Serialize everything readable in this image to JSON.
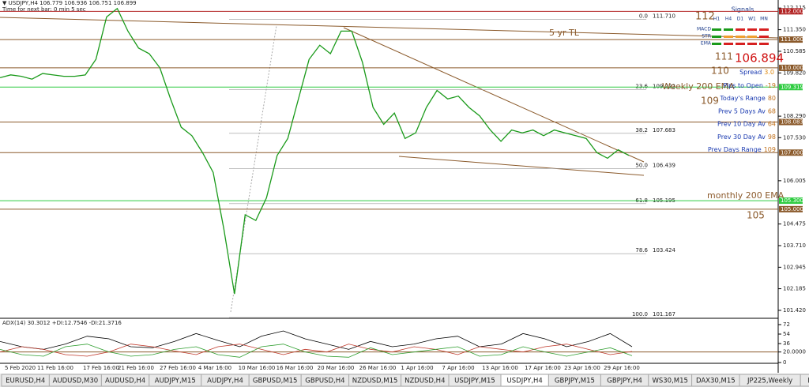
{
  "header": {
    "symbol_line": "▼ USDJPY,H4  106.779 106.936 106.751 106.899",
    "timer": "Time for next bar: 0 min 5 sec"
  },
  "price_axis": {
    "ylim": [
      101.167,
      112.4
    ],
    "ticks": [
      112.115,
      {
        "value": 111.35,
        "label": "111.350"
      },
      110.585,
      {
        "value": 109.82,
        "label": "109.820"
      },
      {
        "value": 108.29,
        "label": "108.290"
      },
      {
        "value": 107.53,
        "label": "107.530"
      },
      106.005,
      104.475,
      {
        "value": 103.71,
        "label": "103.710"
      },
      102.945,
      102.185,
      {
        "value": 101.42,
        "label": "101.420"
      }
    ]
  },
  "levels": [
    {
      "value": 112,
      "label": "112.000",
      "color": "#b22222"
    },
    {
      "value": 111,
      "label": "111.000",
      "color": "#8b5a2b"
    },
    {
      "value": 110,
      "label": "110.000",
      "color": "#8b5a2b"
    },
    {
      "value": 109.319,
      "label": "109.319",
      "color": "#2ecc40"
    },
    {
      "value": 108.083,
      "label": "108.083",
      "color": "#8b5a2b"
    },
    {
      "value": 107,
      "label": "107.000",
      "color": "#8b5a2b"
    },
    {
      "value": 105.3,
      "label": "105.300",
      "color": "#2ecc40"
    },
    {
      "value": 105,
      "label": "105.000",
      "color": "#8b5a2b"
    }
  ],
  "fib": [
    {
      "level": "0.0",
      "value": 111.71,
      "label": "111.710"
    },
    {
      "level": "23.6",
      "value": 109.222,
      "label": "109.222"
    },
    {
      "level": "38.2",
      "value": 107.683,
      "label": "107.683"
    },
    {
      "level": "50.0",
      "value": 106.439,
      "label": "106.439"
    },
    {
      "level": "61.8",
      "value": 105.195,
      "label": "105.195"
    },
    {
      "level": "78.6",
      "value": 103.424,
      "label": "103.424"
    },
    {
      "level": "100.0",
      "value": 101.167,
      "label": "101.167"
    }
  ],
  "annotations": [
    "112",
    "5 yr TL",
    "111",
    "110",
    "Weekly 200 EMA",
    "109",
    "monthly 200 EMA",
    "105"
  ],
  "current_price": 106.894,
  "spread": {
    "label": "Spread",
    "value": {
      "value": 3,
      "label": "3.0"
    }
  },
  "info_panel": [
    {
      "label": "Pips to Open",
      "value": -19
    },
    {
      "label": "Today's Range",
      "value": 80
    },
    {
      "label": "Prev 5 Days Av",
      "value": 68
    },
    {
      "label": "Prev 10 Day Av",
      "value": 64
    },
    {
      "label": "Prev 30 Day Av",
      "value": 98
    },
    {
      "label": "Prev Days Range",
      "value": 109
    }
  ],
  "signals": {
    "title": "Signals",
    "columns": [
      "H1",
      "H4",
      "D1",
      "W1",
      "MN"
    ],
    "rows": [
      {
        "name": "MACD",
        "colors": [
          "#1a9a1a",
          "#1a9a1a",
          "#d62020",
          "#d62020",
          "#d62020"
        ]
      },
      {
        "name": "STR",
        "colors": [
          "#1a9a1a",
          "#f0a030",
          "#f0a030",
          "#f0a030",
          "#d62020"
        ]
      },
      {
        "name": "EMA",
        "colors": [
          "#1a9a1a",
          "#d62020",
          "#d62020",
          "#d62020",
          "#d62020"
        ]
      }
    ]
  },
  "price_series": {
    "color": "#1a9a1a",
    "values": [
      109.65,
      109.75,
      109.7,
      109.6,
      109.8,
      109.75,
      109.7,
      109.7,
      109.75,
      110.3,
      111.8,
      112.1,
      111.3,
      110.7,
      110.5,
      110.0,
      108.9,
      107.9,
      107.6,
      107.0,
      106.3,
      104.3,
      102.0,
      104.8,
      104.6,
      105.4,
      106.9,
      107.5,
      108.9,
      110.3,
      110.8,
      110.5,
      111.3,
      111.3,
      110.2,
      108.6,
      108.0,
      108.4,
      107.5,
      107.7,
      108.6,
      109.2,
      108.9,
      109.0,
      108.6,
      108.3,
      107.8,
      107.4,
      107.8,
      107.7,
      107.8,
      107.6,
      107.8,
      107.7,
      107.6,
      107.5,
      107.0,
      106.8,
      107.1,
      106.9
    ]
  },
  "adx": {
    "label": "ADX(14) 30.3012 +DI:12.7546 -DI:21.3716",
    "ylim": [
      0,
      72
    ],
    "ticks": [
      72,
      54,
      36,
      {
        "value": 20,
        "label": "20.0000"
      },
      0
    ],
    "series": [
      {
        "color": "#000000",
        "values": [
          40,
          30,
          25,
          35,
          50,
          45,
          30,
          28,
          40,
          55,
          42,
          30,
          50,
          60,
          45,
          35,
          25,
          40,
          30,
          35,
          45,
          50,
          30,
          35,
          55,
          45,
          30,
          40,
          55,
          30
        ]
      },
      {
        "color": "#c0392b",
        "values": [
          20,
          30,
          25,
          15,
          12,
          20,
          35,
          30,
          22,
          15,
          30,
          35,
          25,
          15,
          25,
          20,
          35,
          25,
          20,
          30,
          25,
          15,
          30,
          25,
          20,
          30,
          35,
          25,
          15,
          21
        ]
      },
      {
        "color": "#2e9e2e",
        "values": [
          25,
          15,
          12,
          30,
          35,
          20,
          12,
          15,
          25,
          30,
          15,
          10,
          30,
          35,
          20,
          12,
          10,
          28,
          15,
          20,
          25,
          30,
          12,
          15,
          30,
          20,
          12,
          20,
          28,
          13
        ]
      }
    ]
  },
  "dates": [
    "5 Feb 2020",
    "11 Feb 16:00",
    "17 Feb 16:00",
    "21 Feb 16:00",
    "27 Feb 16:00",
    "4 Mar 16:00",
    "10 Mar 16:00",
    "16 Mar 16:00",
    "20 Mar 16:00",
    "26 Mar 16:00",
    "1 Apr 16:00",
    "7 Apr 16:00",
    "13 Apr 16:00",
    "17 Apr 16:00",
    "23 Apr 16:00",
    "29 Apr 16:00"
  ],
  "tabs": {
    "active": 10,
    "items": [
      "EURUSD,H4",
      "AUDUSD,M30",
      "AUDUSD,H4",
      "AUDJPY,M15",
      "AUDJPY,H4",
      "GBPUSD,M15",
      "GBPUSD,H4",
      "NZDUSD,M15",
      "NZDUSD,H4",
      "USDJPY,M15",
      "USDJPY,H4",
      "GBPJPY,M15",
      "GBPJPY,H4",
      "WS30,M15",
      "DAX30,M15",
      "JP225,Weekly",
      "BTCUSD,Daily"
    ]
  }
}
